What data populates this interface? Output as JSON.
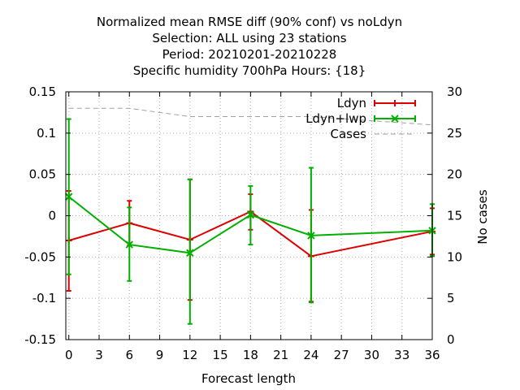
{
  "chart_data": {
    "type": "line",
    "title": [
      "Normalized mean RMSE diff (90% conf) vs noLdyn",
      "Selection: ALL using    23 stations",
      "Period: 20210201-20210228",
      "Specific humidity 700hPa   Hours: {18}"
    ],
    "xlabel": "Forecast length",
    "ylabel": "",
    "y2label": "No cases",
    "xlim": [
      -0.3,
      36
    ],
    "ylim": [
      -0.15,
      0.15
    ],
    "y2lim": [
      0,
      30
    ],
    "x_ticks": [
      0,
      3,
      6,
      9,
      12,
      15,
      18,
      21,
      24,
      27,
      30,
      33,
      36
    ],
    "y_ticks": [
      -0.15,
      -0.1,
      -0.05,
      0,
      0.05,
      0.1,
      0.15
    ],
    "y_tick_labels": [
      "-0.15",
      "-0.1",
      "-0.05",
      "0",
      "0.05",
      "0.1",
      "0.15"
    ],
    "y2_ticks": [
      0,
      5,
      10,
      15,
      20,
      25,
      30
    ],
    "grid": true,
    "legend_position": "top-right",
    "series": [
      {
        "name": "Ldyn",
        "color": "#dd0000",
        "marker": "plus",
        "x": [
          0,
          6,
          12,
          18,
          24,
          36
        ],
        "y": [
          -0.03,
          -0.009,
          -0.029,
          0.005,
          -0.049,
          -0.019
        ],
        "err_low": [
          -0.091,
          -0.036,
          -0.102,
          -0.017,
          -0.104,
          -0.047
        ],
        "err_high": [
          0.03,
          0.018,
          0.044,
          0.026,
          0.007,
          0.009
        ]
      },
      {
        "name": "Ldyn+lwp",
        "color": "#00b000",
        "marker": "x",
        "x": [
          0,
          6,
          12,
          18,
          24,
          36
        ],
        "y": [
          0.023,
          -0.035,
          -0.045,
          0.001,
          -0.024,
          -0.018
        ],
        "err_low": [
          -0.071,
          -0.079,
          -0.131,
          -0.035,
          -0.105,
          -0.049
        ],
        "err_high": [
          0.117,
          0.01,
          0.044,
          0.036,
          0.058,
          0.014
        ]
      },
      {
        "name": "Cases",
        "color": "#a0a0a0",
        "style": "dashed",
        "axis": "y2",
        "x": [
          0,
          6,
          12,
          18,
          24,
          36
        ],
        "y": [
          28,
          28,
          27,
          27,
          27,
          26
        ]
      }
    ]
  }
}
